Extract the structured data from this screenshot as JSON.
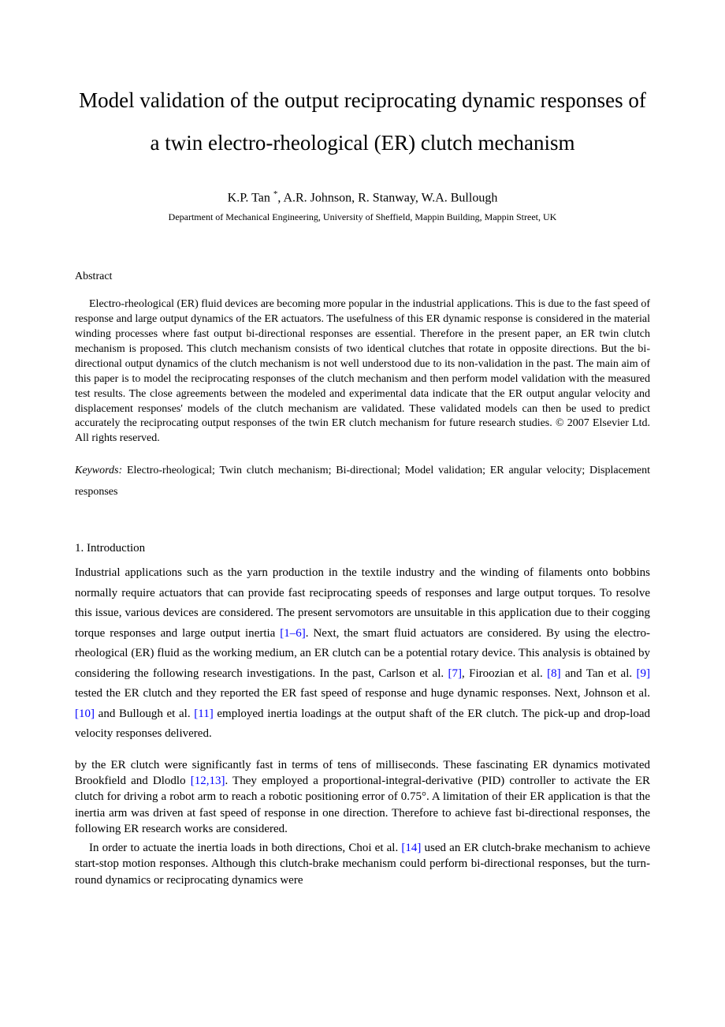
{
  "title": "Model validation of the output reciprocating dynamic responses of a twin electro-rheological (ER) clutch mechanism",
  "authors_prefix": "K.P. Tan ",
  "authors_suffix": ", A.R. Johnson, R. Stanway, W.A. Bullough",
  "asterisk": "*",
  "affiliation": "Department of Mechanical Engineering, University of Sheffield, Mappin Building, Mappin Street, UK",
  "abstract_heading": "Abstract",
  "abstract_text": "Electro-rheological (ER) fluid devices are becoming more popular in the industrial applications. This is due to the fast speed of response and large output dynamics of the ER actuators. The usefulness of this ER dynamic response is considered in the material winding processes where fast output bi-directional responses are essential. Therefore in the present paper, an ER twin clutch mechanism is proposed. This clutch mechanism consists of two identical clutches that rotate in opposite directions. But the bi-directional output dynamics of the clutch mechanism is not well understood due to its non-validation in the past. The main aim of this paper is to model the reciprocating responses of the clutch mechanism and then perform model validation with the measured test results. The close agreements between the modeled and experimental data indicate that the ER output angular velocity and displacement responses' models of the clutch mechanism are validated. These validated models can then be used to predict accurately the reciprocating output responses of the twin ER clutch mechanism for future research studies. © 2007 Elsevier Ltd. All rights reserved.",
  "keywords_label": "Keywords:",
  "keywords_text": " Electro-rheological; Twin clutch mechanism; Bi-directional; Model validation; ER angular velocity; Displacement responses",
  "section_1_heading": "1. Introduction",
  "intro_p1_part1": "Industrial applications such as the yarn production in the textile industry and the winding of filaments onto bobbins normally require actuators that can provide fast reciprocating speeds of responses and large output torques. To resolve this issue, various devices are considered. The present servomotors are unsuitable in this application due to their cogging torque responses and large output inertia ",
  "ref_1_6": "[1–6]",
  "intro_p1_part2": ". Next, the smart fluid actuators are considered. By using the electro-rheological (ER) fluid as the working medium, an ER clutch can be a potential rotary device. This analysis is obtained by considering the following research investigations. In the past, Carlson et al. ",
  "ref_7": "[7]",
  "intro_p1_part3": ", Firoozian et al. ",
  "ref_8": "[8]",
  "intro_p1_part4": " and Tan et al. ",
  "ref_9": "[9]",
  "intro_p1_part5": " tested the ER clutch and they reported the ER fast speed of response and huge dynamic responses. Next, Johnson et al. ",
  "ref_10": "[10]",
  "intro_p1_part6": " and Bullough et al. ",
  "ref_11": "[11]",
  "intro_p1_part7": " employed inertia loadings at the output shaft of the ER clutch. The pick-up and drop-load velocity responses delivered.",
  "intro_p2_part1": "by the ER clutch were significantly fast in terms of tens of milliseconds. These fascinating ER dynamics motivated Brookfield and Dlodlo ",
  "ref_12_13": "[12,13]",
  "intro_p2_part2": ". They employed a proportional-integral-derivative (PID) controller to activate the ER clutch for driving a robot arm to reach a robotic positioning error of 0.75°. A limitation of their ER application is that the inertia arm was driven at fast speed of response in one direction. Therefore to achieve fast bi-directional responses, the following ER research works are considered.",
  "intro_p3_part1": "In order to actuate the inertia loads in both directions, Choi et al. ",
  "ref_14": "[14]",
  "intro_p3_part2": " used an ER clutch-brake mechanism to achieve start-stop motion responses. Although this clutch-brake mechanism could perform bi-directional responses, but the turn-round dynamics or reciprocating dynamics were",
  "colors": {
    "link_color": "#0000ff",
    "text_color": "#000000",
    "background_color": "#ffffff"
  }
}
